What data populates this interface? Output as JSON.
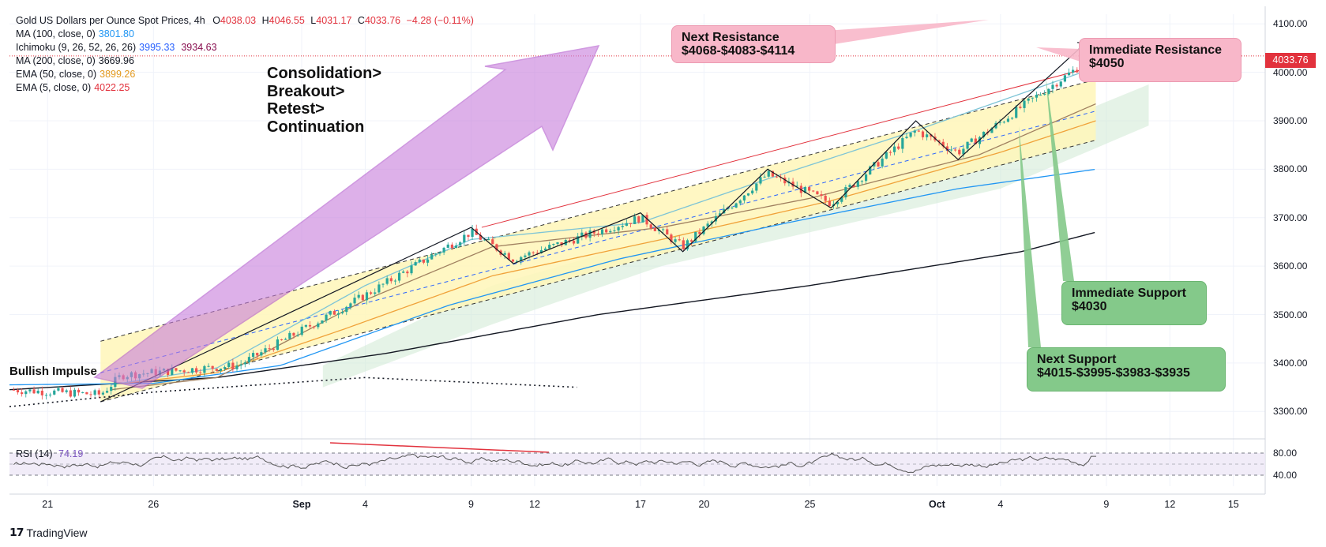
{
  "legend": {
    "title": "Gold US Dollars per Ounce Spot Prices, 4h",
    "open_label": "O",
    "open": "4038.03",
    "high_label": "H",
    "high": "4046.55",
    "low_label": "L",
    "low": "4031.17",
    "close_label": "C",
    "close": "4033.76",
    "change": "−4.28 (−0.11%)",
    "indicators": [
      {
        "name": "MA (100, close, 0)",
        "value": "3801.80",
        "value2": "",
        "color": "#2196f3"
      },
      {
        "name": "Ichimoku (9, 26, 52, 26, 26)",
        "value": "3995.33",
        "value2": "3934.63",
        "color": "#2962ff",
        "color2": "#880e4f"
      },
      {
        "name": "MA (200, close, 0)",
        "value": "3669.96",
        "value2": "",
        "color": "#131722"
      },
      {
        "name": "EMA (50, close, 0)",
        "value": "3899.26",
        "value2": "",
        "color": "#f0a23a"
      },
      {
        "name": "EMA (5, close, 0)",
        "value": "4022.25",
        "value2": "",
        "color": "#e2323d"
      }
    ]
  },
  "annotations": {
    "strategy": [
      "Consolidation>",
      "Breakout>",
      "Retest>",
      "Continuation"
    ],
    "bullish_impulse": "Bullish Impulse",
    "next_resistance_title": "Next Resistance",
    "next_resistance_values": "$4068-$4083-$4114",
    "immediate_resistance_title": "Immediate Resistance",
    "immediate_resistance_value": "$4050",
    "immediate_support_title": "Immediate Support",
    "immediate_support_value": "$4030",
    "next_support_title": "Next Support",
    "next_support_values": "$4015-$3995-$3983-$3935"
  },
  "rsi": {
    "name": "RSI (14)",
    "value": "74.19",
    "levels": [
      "80.00",
      "40.00"
    ]
  },
  "current_price": "4033.76",
  "branding": "TradingView",
  "colors": {
    "up": "#26a69a",
    "down": "#ef5350",
    "channel_fill": "#fff6b8",
    "pink": "#f8b7c9",
    "green": "#84c98a",
    "purple": "#c77ddb",
    "resistance_line": "#e2323d"
  },
  "chart_data": {
    "type": "line",
    "title": "Gold US Dollars per Ounce Spot Prices, 4h",
    "xlabel": "",
    "ylabel": "",
    "ylim": [
      3250,
      4120
    ],
    "y_ticks": [
      "4100.00",
      "4000.00",
      "3900.00",
      "3800.00",
      "3700.00",
      "3600.00",
      "3500.00",
      "3400.00",
      "3300.00"
    ],
    "x_ticks": [
      {
        "label": "21",
        "day": -11,
        "bold": false
      },
      {
        "label": "26",
        "day": -6,
        "bold": false
      },
      {
        "label": "Sep",
        "day": 1,
        "bold": true
      },
      {
        "label": "4",
        "day": 4,
        "bold": false
      },
      {
        "label": "9",
        "day": 9,
        "bold": false
      },
      {
        "label": "12",
        "day": 12,
        "bold": false
      },
      {
        "label": "17",
        "day": 17,
        "bold": false
      },
      {
        "label": "20",
        "day": 20,
        "bold": false
      },
      {
        "label": "25",
        "day": 25,
        "bold": false
      },
      {
        "label": "Oct",
        "day": 31,
        "bold": true
      },
      {
        "label": "4",
        "day": 34,
        "bold": false
      },
      {
        "label": "9",
        "day": 39,
        "bold": false
      },
      {
        "label": "12",
        "day": 42,
        "bold": false
      },
      {
        "label": "15",
        "day": 45,
        "bold": false
      }
    ],
    "x_domain_days": [
      -12.8,
      46.5
    ],
    "series": [
      {
        "name": "Price swing path",
        "color": "#131722",
        "points": [
          [
            -8.5,
            3320
          ],
          [
            9,
            3680
          ],
          [
            11,
            3605
          ],
          [
            17,
            3710
          ],
          [
            19,
            3630
          ],
          [
            23,
            3800
          ],
          [
            26,
            3720
          ],
          [
            30,
            3900
          ],
          [
            32,
            3820
          ],
          [
            38,
            4060
          ]
        ]
      },
      {
        "name": "MA (200, close, 0)",
        "color": "#131722",
        "points": [
          [
            -12.8,
            3345
          ],
          [
            -3,
            3370
          ],
          [
            5,
            3420
          ],
          [
            15,
            3500
          ],
          [
            25,
            3560
          ],
          [
            35,
            3630
          ],
          [
            38.5,
            3670
          ]
        ]
      },
      {
        "name": "MA (100, close, 0)",
        "color": "#2196f3",
        "points": [
          [
            -12.8,
            3355
          ],
          [
            -6,
            3358
          ],
          [
            0,
            3395
          ],
          [
            8,
            3520
          ],
          [
            16,
            3615
          ],
          [
            24,
            3690
          ],
          [
            32,
            3760
          ],
          [
            38.5,
            3800
          ]
        ]
      },
      {
        "name": "EMA (50, close, 0)",
        "color": "#f0a23a",
        "points": [
          [
            -8,
            3355
          ],
          [
            -3,
            3380
          ],
          [
            3,
            3470
          ],
          [
            10,
            3580
          ],
          [
            18,
            3655
          ],
          [
            26,
            3735
          ],
          [
            34,
            3835
          ],
          [
            38.5,
            3900
          ]
        ]
      },
      {
        "name": "Ichimoku base",
        "color": "#a08060",
        "points": [
          [
            -8,
            3345
          ],
          [
            -3,
            3370
          ],
          [
            4,
            3530
          ],
          [
            10,
            3640
          ],
          [
            18,
            3680
          ],
          [
            25,
            3740
          ],
          [
            33,
            3830
          ],
          [
            38.5,
            3935
          ]
        ]
      },
      {
        "name": "EMA (5, close, 0)",
        "color": "#7dc4d6",
        "points": [
          [
            -8,
            3355
          ],
          [
            -3,
            3390
          ],
          [
            4,
            3560
          ],
          [
            9,
            3655
          ],
          [
            17,
            3690
          ],
          [
            23,
            3780
          ],
          [
            30,
            3880
          ],
          [
            38.5,
            4010
          ]
        ]
      }
    ],
    "channel": {
      "upper": [
        [
          -8.5,
          3445
        ],
        [
          38.5,
          3985
        ]
      ],
      "mid": [
        [
          -8.5,
          3380
        ],
        [
          38.5,
          3920
        ]
      ],
      "lower": [
        [
          -8.5,
          3320
        ],
        [
          38.5,
          3860
        ]
      ]
    },
    "resistance_trendline": [
      [
        9.5,
        3680
      ],
      [
        40,
        4030
      ]
    ],
    "support_dotted": [
      [
        -12.8,
        3310
      ],
      [
        -6,
        3340
      ],
      [
        4,
        3370
      ],
      [
        14,
        3350
      ]
    ],
    "rsi_series_level": 74.19,
    "rsi_range": [
      20,
      100
    ],
    "rsi_lines": [
      80,
      40
    ]
  }
}
